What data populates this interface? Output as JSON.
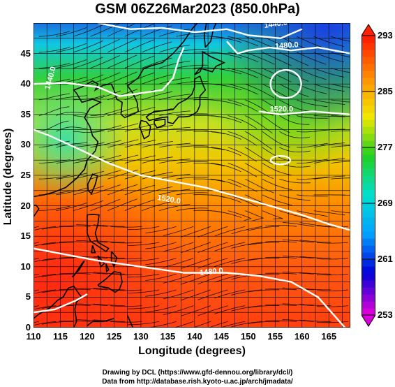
{
  "title": "GSM 06Z26Mar2023 (850.0hPa)",
  "xlabel": "Longitude (degrees)",
  "ylabel": "Latitude  (degrees)",
  "x_ticks": [
    "110",
    "115",
    "120",
    "125",
    "130",
    "135",
    "140",
    "145",
    "150",
    "155",
    "160",
    "165"
  ],
  "y_ticks": [
    "0",
    "5",
    "10",
    "15",
    "20",
    "25",
    "30",
    "35",
    "40",
    "45"
  ],
  "colorbar": {
    "labels": [
      "293",
      "285",
      "277",
      "269",
      "261",
      "253"
    ],
    "colors": [
      "#d800d8",
      "#0000d8",
      "#00a0ff",
      "#00e0d0",
      "#20d020",
      "#f0e800",
      "#ff9000",
      "#ff2000"
    ]
  },
  "contour_labels": [
    "1440.0",
    "1480.0",
    "1440.0",
    "1520.0",
    "1520.0",
    "1480.0"
  ],
  "credits": {
    "line1": "Drawing by DCL (https://www.gfd-dennou.org/library/dcl/)",
    "line2": "Data from http://database.rish.kyoto-u.ac.jp/arch/jmadata/"
  },
  "map_data": {
    "lon_range": [
      110,
      169
    ],
    "lat_range": [
      0,
      50
    ],
    "variable": "temperature (K) with streamlines and geopotential height contours",
    "temp_range": [
      253,
      293
    ]
  }
}
